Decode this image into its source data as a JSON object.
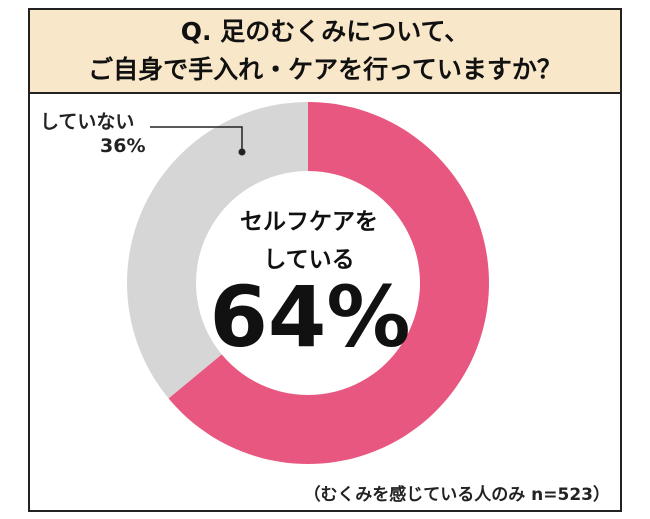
{
  "chart_data": {
    "type": "donut",
    "title": [
      "Q. 足のむくみについて、",
      "ご自身で手入れ・ケアを行っていますか？"
    ],
    "categories": [
      "セルフケアをしている",
      "していない"
    ],
    "values": [
      64,
      36
    ],
    "value_labels": [
      "64%",
      "36%"
    ],
    "colors": [
      "#e8577f",
      "#d6d6d6"
    ],
    "note": "（むくみを感じている人のみ n=523）"
  }
}
